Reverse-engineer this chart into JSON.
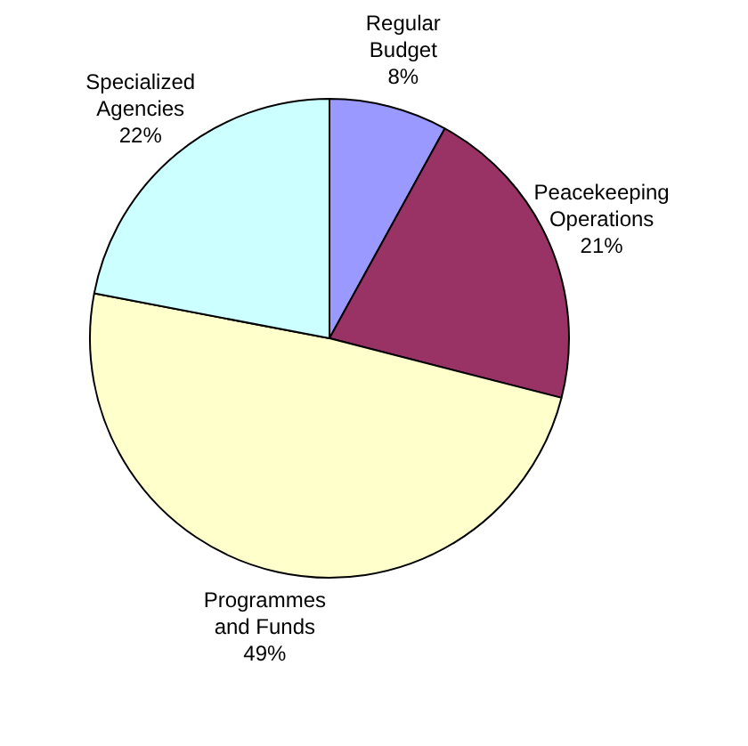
{
  "chart_data": {
    "type": "pie",
    "categories": [
      "Regular Budget",
      "Peacekeeping Operations",
      "Programmes and Funds",
      "Specialized Agencies"
    ],
    "values": [
      8,
      21,
      49,
      22
    ],
    "colors": [
      "#9999ff",
      "#993366",
      "#ffffcc",
      "#ccffff"
    ],
    "value_labels": [
      "8%",
      "21%",
      "49%",
      "22%"
    ],
    "legend": false
  }
}
